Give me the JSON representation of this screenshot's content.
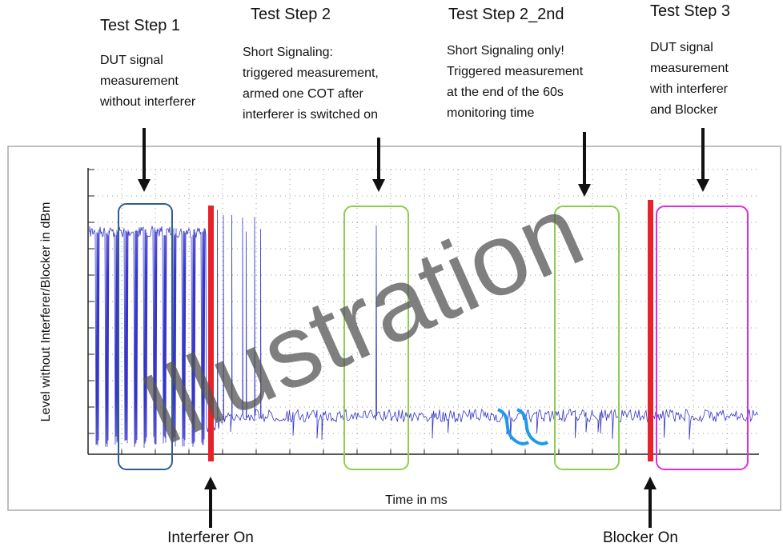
{
  "watermark": "Illustration",
  "steps": [
    {
      "title": "Test Step 1",
      "lines": [
        "DUT signal",
        "measurement",
        "without interferer"
      ]
    },
    {
      "title": "Test Step 2",
      "lines": [
        "Short Signaling:",
        "triggered measurement,",
        "armed one COT after",
        "interferer is switched on"
      ]
    },
    {
      "title": "Test Step 2_2nd",
      "lines": [
        "Short Signaling only!",
        "Triggered measurement",
        "at the end of the 60s",
        "monitoring time"
      ]
    },
    {
      "title": "Test Step 3",
      "lines": [
        "DUT signal",
        "measurement",
        "with interferer",
        "and Blocker"
      ]
    }
  ],
  "y_axis_label": "Level without Interferer/Blocker in dBm",
  "x_axis_label": "Time in ms",
  "events": [
    "Interferer On",
    "Blocker On"
  ]
}
